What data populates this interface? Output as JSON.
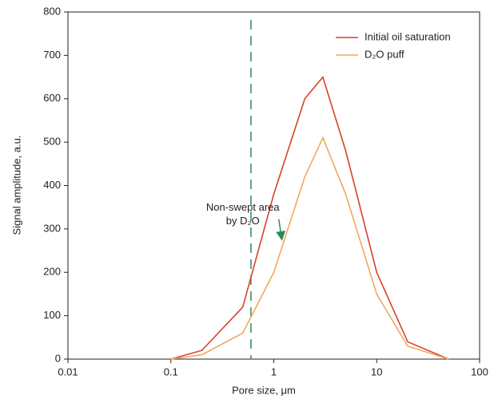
{
  "chart_data": {
    "type": "line",
    "xlabel": "Pore size, μm",
    "ylabel": "Signal amplitude, a.u.",
    "x": [
      0.1,
      0.2,
      0.5,
      1,
      2,
      3,
      5,
      10,
      20,
      50
    ],
    "series": [
      {
        "name": "Initial oil saturation",
        "color": "#d9412b",
        "values": [
          0,
          20,
          120,
          380,
          600,
          650,
          480,
          200,
          40,
          0
        ]
      },
      {
        "name": "D₂O puff",
        "color": "#f0a860",
        "values": [
          0,
          10,
          60,
          200,
          420,
          510,
          380,
          150,
          30,
          0
        ]
      }
    ],
    "annotation": [
      "Non-swept area",
      "by D₂O"
    ],
    "annotation_xy": [
      0.5,
      330
    ],
    "arrow_to": [
      1.2,
      330
    ],
    "vline": 0.6,
    "vline_color": "#2e8b57",
    "xlim": [
      0.01,
      100
    ],
    "xticks": [
      0.01,
      0.1,
      1,
      10,
      100
    ],
    "xscale": "log",
    "ylim": [
      0,
      800
    ],
    "yticks": [
      0,
      100,
      200,
      300,
      400,
      500,
      600,
      700,
      800
    ],
    "legend": "upper right"
  }
}
